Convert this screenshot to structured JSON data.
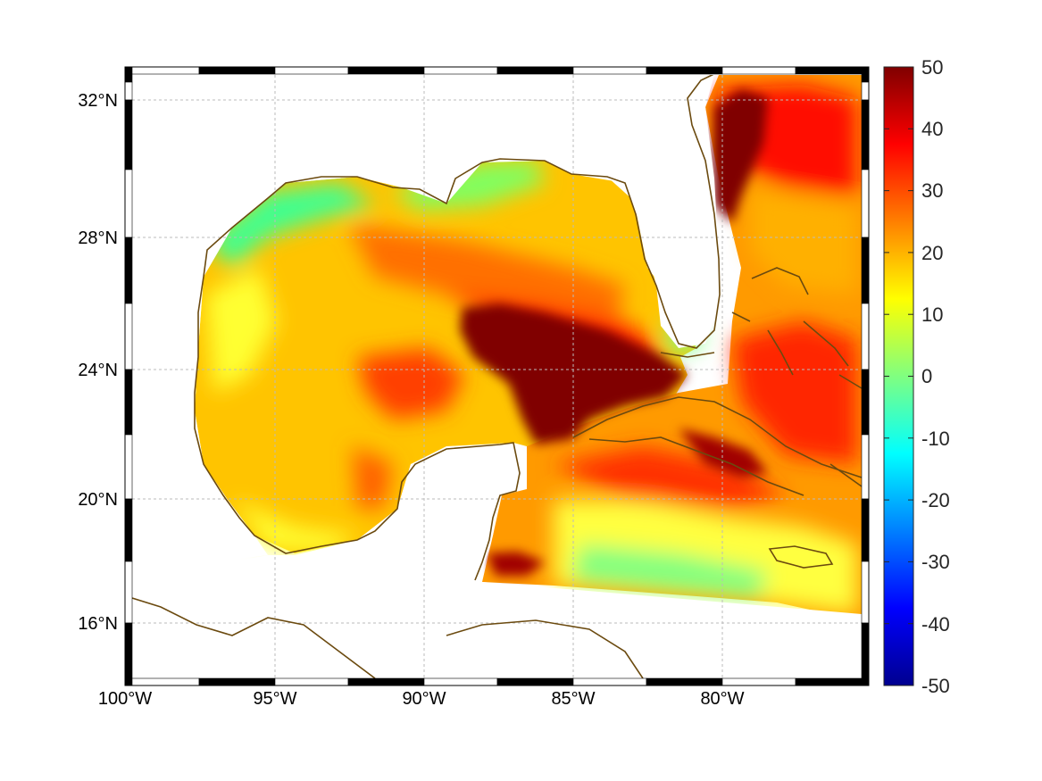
{
  "map": {
    "longitude_ticks": [
      "100°W",
      "95°W",
      "90°W",
      "85°W",
      "80°W"
    ],
    "latitude_ticks": [
      "32°N",
      "28°N",
      "24°N",
      "20°N",
      "16°N"
    ],
    "longitude_values": [
      -100,
      -95,
      -90,
      -85,
      -80
    ],
    "latitude_values": [
      32,
      28,
      24,
      20,
      16
    ],
    "extent": {
      "lon": [
        -100,
        -75
      ],
      "lat": [
        14.3,
        33
      ]
    },
    "grid": true,
    "frame_style": "black-white checkered border",
    "colors": {
      "coastline": "#6b4a0f",
      "grid": "#bbbbbb",
      "land": "#ffffff"
    }
  },
  "colorbar": {
    "tick_labels": [
      "50",
      "40",
      "30",
      "20",
      "10",
      "0",
      "-10",
      "-20",
      "-30",
      "-40",
      "-50"
    ],
    "range": [
      -50,
      50
    ],
    "colormap": "jet",
    "colors": [
      "#00008f",
      "#0000ff",
      "#0080ff",
      "#00ffff",
      "#80ff80",
      "#ffff00",
      "#ff8000",
      "#ff0000",
      "#800000"
    ]
  }
}
